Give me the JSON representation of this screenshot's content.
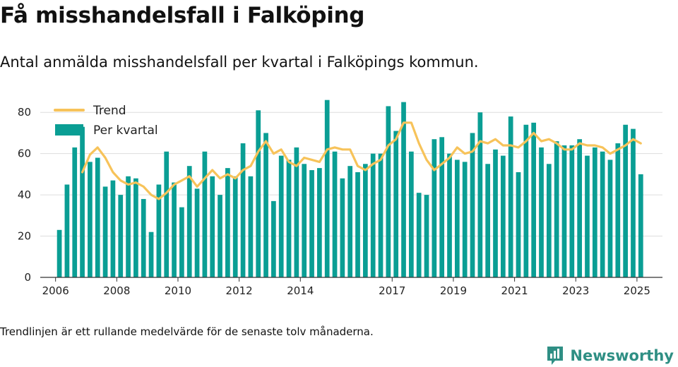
{
  "title": "Få misshandelsfall i Falköping",
  "subtitle": "Antal anmälda misshandelsfall per kvartal i Falköpings kommun.",
  "footnote": "Trendlinjen är ett rullande medelvärde för de senaste tolv månaderna.",
  "brand": {
    "name": "Newsworthy",
    "icon": "newsworthy-logo-icon"
  },
  "colors": {
    "bars": "#0a9e94",
    "trend": "#f7c35a",
    "grid": "#dddddd",
    "axis": "#333333"
  },
  "chart_data": {
    "type": "bar",
    "ylim": [
      0,
      90
    ],
    "yticks": [
      0,
      20,
      40,
      60,
      80
    ],
    "xlim": [
      "2005-07",
      "2025-11"
    ],
    "xticks": [
      {
        "label": "2006",
        "date": "2006-01"
      },
      {
        "label": "2008",
        "date": "2008-01"
      },
      {
        "label": "2010",
        "date": "2010-01"
      },
      {
        "label": "2012",
        "date": "2012-01"
      },
      {
        "label": "2014",
        "date": "2014-01"
      },
      {
        "label": "2017",
        "date": "2017-01"
      },
      {
        "label": "2019",
        "date": "2019-01"
      },
      {
        "label": "2021",
        "date": "2021-01"
      },
      {
        "label": "2023",
        "date": "2023-01"
      },
      {
        "label": "2025",
        "date": "2025-01"
      }
    ],
    "legend_position": "top-left",
    "grid": true,
    "series": [
      {
        "name": "Per kvartal",
        "type": "bar",
        "x": [
          "2006-Q1",
          "2006-Q2",
          "2006-Q3",
          "2006-Q4",
          "2007-Q1",
          "2007-Q2",
          "2007-Q3",
          "2007-Q4",
          "2008-Q1",
          "2008-Q2",
          "2008-Q3",
          "2008-Q4",
          "2009-Q1",
          "2009-Q2",
          "2009-Q3",
          "2009-Q4",
          "2010-Q1",
          "2010-Q2",
          "2010-Q3",
          "2010-Q4",
          "2011-Q1",
          "2011-Q2",
          "2011-Q3",
          "2011-Q4",
          "2012-Q1",
          "2012-Q2",
          "2012-Q3",
          "2012-Q4",
          "2013-Q1",
          "2013-Q2",
          "2013-Q3",
          "2013-Q4",
          "2014-Q1",
          "2014-Q2",
          "2014-Q3",
          "2014-Q4",
          "2015-Q1",
          "2015-Q2",
          "2015-Q3",
          "2015-Q4",
          "2016-Q1",
          "2016-Q2",
          "2016-Q3",
          "2016-Q4",
          "2017-Q1",
          "2017-Q2",
          "2017-Q3",
          "2017-Q4",
          "2018-Q1",
          "2018-Q2",
          "2018-Q3",
          "2018-Q4",
          "2019-Q1",
          "2019-Q2",
          "2019-Q3",
          "2019-Q4",
          "2020-Q1",
          "2020-Q2",
          "2020-Q3",
          "2020-Q4",
          "2021-Q1",
          "2021-Q2",
          "2021-Q3",
          "2021-Q4",
          "2022-Q1",
          "2022-Q2",
          "2022-Q3",
          "2022-Q4",
          "2023-Q1",
          "2023-Q2",
          "2023-Q3",
          "2023-Q4",
          "2024-Q1",
          "2024-Q2",
          "2024-Q3",
          "2024-Q4",
          "2025-Q1"
        ],
        "values": [
          23,
          45,
          63,
          73,
          56,
          58,
          44,
          47,
          40,
          49,
          48,
          38,
          22,
          45,
          61,
          46,
          34,
          54,
          43,
          61,
          49,
          40,
          53,
          49,
          65,
          49,
          81,
          70,
          37,
          59,
          57,
          63,
          55,
          52,
          53,
          86,
          61,
          48,
          54,
          51,
          55,
          60,
          60,
          83,
          71,
          85,
          61,
          41,
          40,
          67,
          68,
          60,
          57,
          56,
          70,
          80,
          55,
          62,
          59,
          78,
          51,
          74,
          75,
          63,
          55,
          66,
          64,
          64,
          67,
          59,
          63,
          61,
          57,
          65,
          74,
          72,
          50
        ]
      },
      {
        "name": "Trend",
        "type": "line",
        "x": [
          "2006-Q4",
          "2007-Q1",
          "2007-Q2",
          "2007-Q3",
          "2007-Q4",
          "2008-Q1",
          "2008-Q2",
          "2008-Q3",
          "2008-Q4",
          "2009-Q1",
          "2009-Q2",
          "2009-Q3",
          "2009-Q4",
          "2010-Q1",
          "2010-Q2",
          "2010-Q3",
          "2010-Q4",
          "2011-Q1",
          "2011-Q2",
          "2011-Q3",
          "2011-Q4",
          "2012-Q1",
          "2012-Q2",
          "2012-Q3",
          "2012-Q4",
          "2013-Q1",
          "2013-Q2",
          "2013-Q3",
          "2013-Q4",
          "2014-Q1",
          "2014-Q2",
          "2014-Q3",
          "2014-Q4",
          "2015-Q1",
          "2015-Q2",
          "2015-Q3",
          "2015-Q4",
          "2016-Q1",
          "2016-Q2",
          "2016-Q3",
          "2016-Q4",
          "2017-Q1",
          "2017-Q2",
          "2017-Q3",
          "2017-Q4",
          "2018-Q1",
          "2018-Q2",
          "2018-Q3",
          "2018-Q4",
          "2019-Q1",
          "2019-Q2",
          "2019-Q3",
          "2019-Q4",
          "2020-Q1",
          "2020-Q2",
          "2020-Q3",
          "2020-Q4",
          "2021-Q1",
          "2021-Q2",
          "2021-Q3",
          "2021-Q4",
          "2022-Q1",
          "2022-Q2",
          "2022-Q3",
          "2022-Q4",
          "2023-Q1",
          "2023-Q2",
          "2023-Q3",
          "2023-Q4",
          "2024-Q1",
          "2024-Q2",
          "2024-Q3",
          "2024-Q4",
          "2025-Q1"
        ],
        "values": [
          51,
          59.5,
          63,
          58,
          51,
          47,
          45,
          46,
          44,
          40,
          38,
          41,
          45,
          47,
          49,
          44,
          48,
          52,
          48,
          50,
          48,
          52,
          54,
          61,
          66,
          60,
          62,
          56,
          54,
          58,
          57,
          56,
          62,
          63,
          62,
          62,
          54,
          52,
          55,
          57,
          64,
          67,
          75,
          75,
          65,
          57,
          52,
          55,
          58,
          63,
          60,
          61,
          66,
          65,
          67,
          64,
          64,
          63,
          66,
          70,
          66,
          67,
          65,
          62,
          62,
          65,
          64,
          64,
          63,
          60,
          62,
          64,
          67,
          65
        ]
      }
    ]
  }
}
